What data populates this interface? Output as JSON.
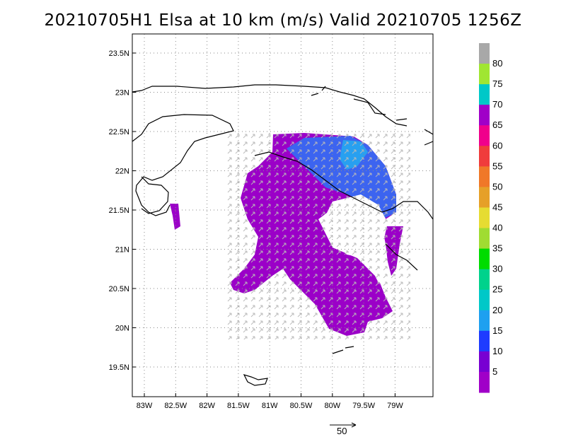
{
  "title": "20210705H1 Elsa at 10 km (m/s) Valid 20210705 1256Z",
  "lat_labels": [
    "23.5N",
    "23N",
    "22.5N",
    "22N",
    "21.5N",
    "21N",
    "20.5N",
    "20N",
    "19.5N"
  ],
  "lon_labels": [
    "83W",
    "82.5W",
    "82W",
    "81.5W",
    "81W",
    "80.5W",
    "80W",
    "79.5W",
    "79W"
  ],
  "colorbar": {
    "labels": [
      "80",
      "75",
      "70",
      "65",
      "60",
      "55",
      "50",
      "45",
      "40",
      "35",
      "30",
      "25",
      "20",
      "15",
      "10",
      "5"
    ],
    "colors": [
      "#a8a8a8",
      "#a0e632",
      "#00c8c8",
      "#a000c8",
      "#f0008c",
      "#f03c3c",
      "#f07828",
      "#e6a028",
      "#e6dc32",
      "#a0dc32",
      "#00dc00",
      "#00d28c",
      "#00c8c8",
      "#1ea0f0",
      "#1e3cff",
      "#7800d2",
      "#a000c8"
    ]
  },
  "scale_vector": {
    "label": "50"
  },
  "wind_fill_colors": {
    "low": "#9b00c8",
    "mid": "#3c64f0",
    "high": "#28a0f0",
    "vector": "#b4b4b4"
  }
}
